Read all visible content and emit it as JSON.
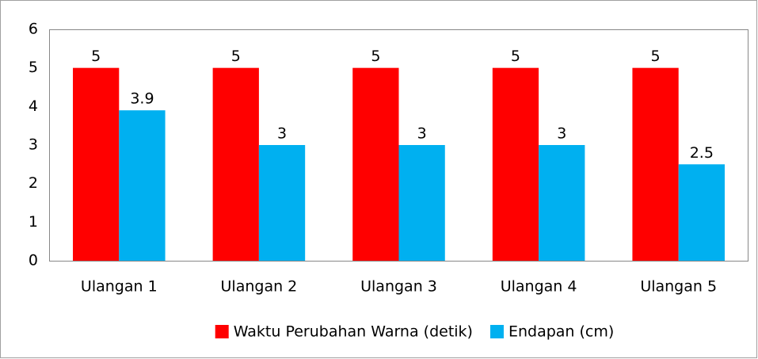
{
  "chart_data": {
    "type": "bar",
    "categories": [
      "Ulangan 1",
      "Ulangan 2",
      "Ulangan 3",
      "Ulangan 4",
      "Ulangan 5"
    ],
    "series": [
      {
        "name": "Waktu Perubahan Warna (detik)",
        "color": "#ff0000",
        "values": [
          5,
          5,
          5,
          5,
          5
        ]
      },
      {
        "name": "Endapan (cm)",
        "color": "#00b0f0",
        "values": [
          3.9,
          3,
          3,
          3,
          2.5
        ]
      }
    ],
    "ylim": [
      0,
      6
    ],
    "yticks": [
      0,
      1,
      2,
      3,
      4,
      5,
      6
    ],
    "grid": false,
    "legend": "bottom"
  }
}
